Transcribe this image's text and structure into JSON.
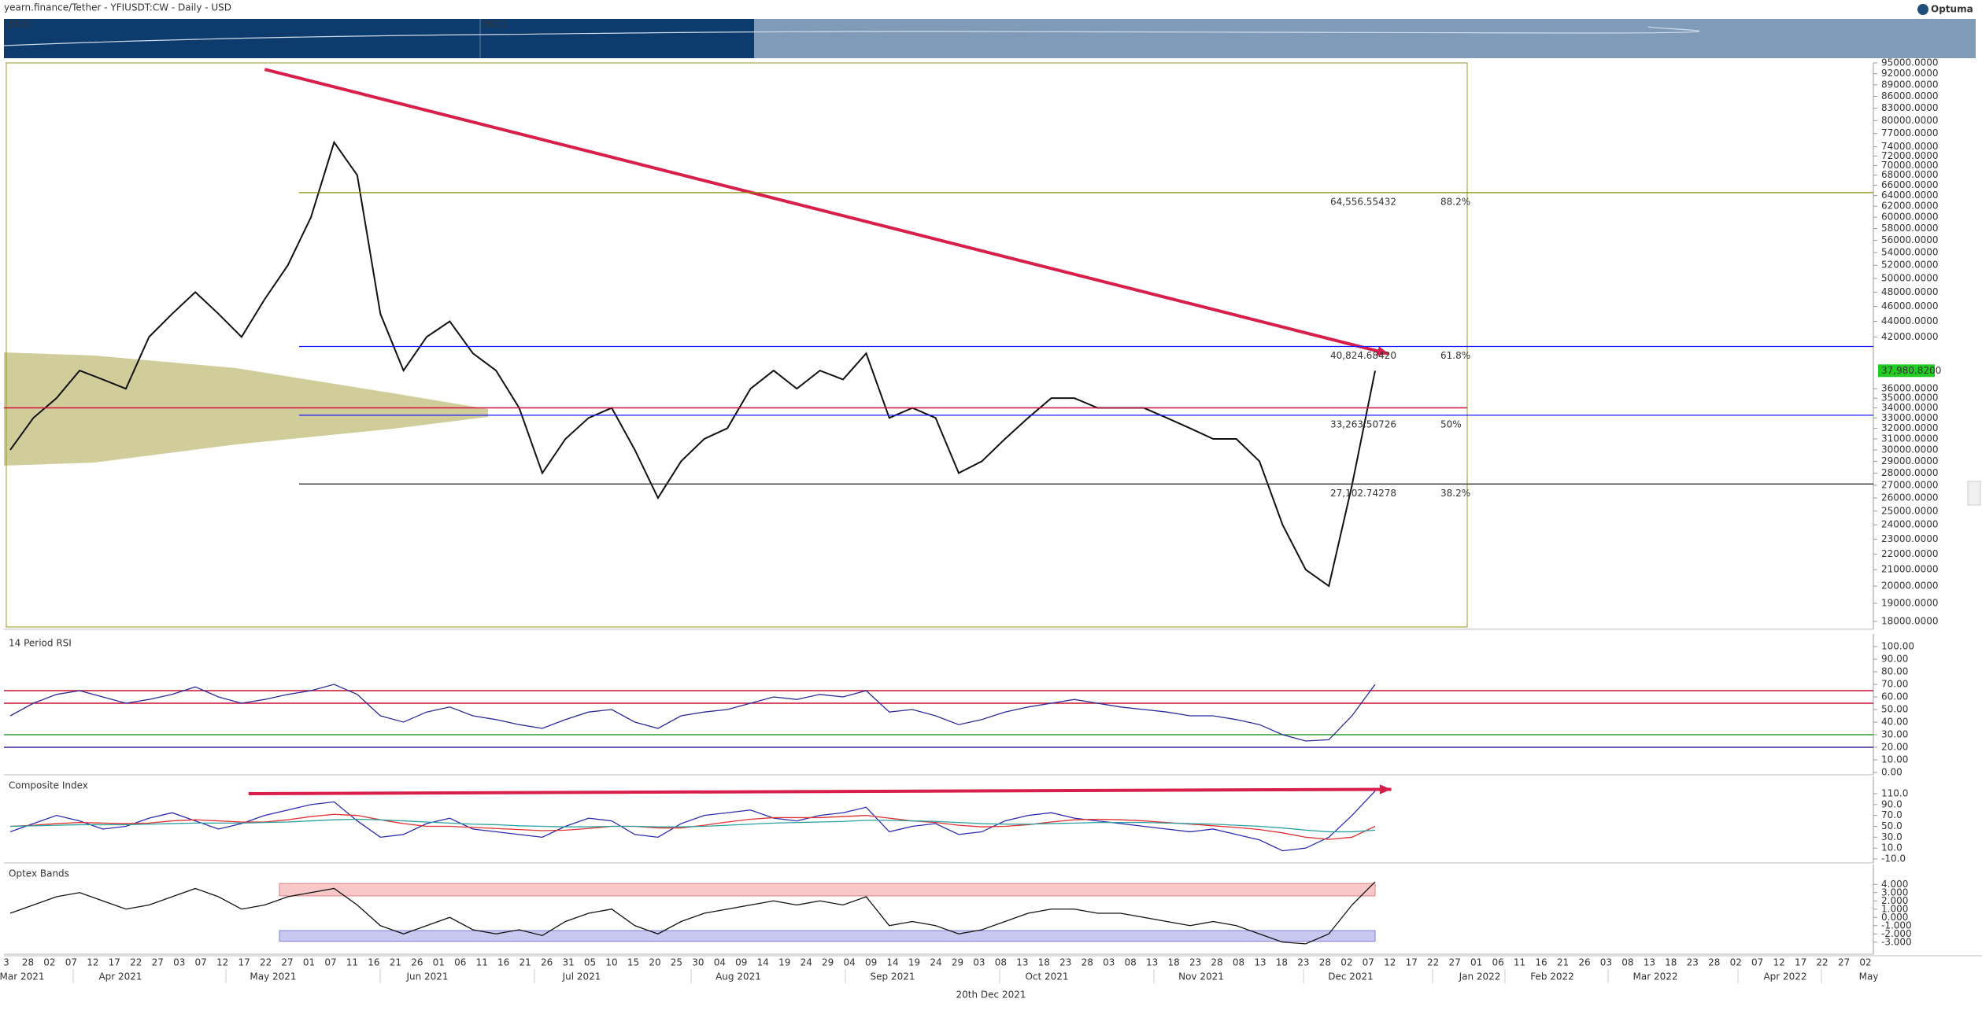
{
  "chart_data": [
    {
      "type": "line",
      "title": "yearn.finance/Tether - YFIUSDT:CW - Daily - USD",
      "log_scale": true,
      "color": "#111111",
      "navigator_labels": [
        "2020",
        "2021"
      ],
      "brand": "Optuma",
      "values": [
        30000,
        33000,
        35000,
        38000,
        37000,
        36000,
        42000,
        45000,
        48000,
        45000,
        42000,
        47000,
        52000,
        60000,
        75000,
        68000,
        45000,
        38000,
        42000,
        44000,
        40000,
        38000,
        34000,
        28000,
        31000,
        33000,
        34000,
        30000,
        26000,
        29000,
        31000,
        32000,
        36000,
        38000,
        36000,
        38000,
        37000,
        40000,
        33000,
        34000,
        33000,
        28000,
        29000,
        31000,
        33000,
        35000,
        35000,
        34000,
        34000,
        34000,
        33000,
        32000,
        31000,
        31000,
        29000,
        24000,
        21000,
        20000,
        27000,
        37980.82
      ],
      "last_price_label": "37,980.8200",
      "ylim": [
        18000,
        95000
      ],
      "yticks": [
        {
          "value": 95000,
          "label": "95000.0000"
        },
        {
          "value": 92000,
          "label": "92000.0000"
        },
        {
          "value": 89000,
          "label": "89000.0000"
        },
        {
          "value": 86000,
          "label": "86000.0000"
        },
        {
          "value": 83000,
          "label": "83000.0000"
        },
        {
          "value": 80000,
          "label": "80000.0000"
        },
        {
          "value": 77000,
          "label": "77000.0000"
        },
        {
          "value": 74000,
          "label": "74000.0000"
        },
        {
          "value": 72000,
          "label": "72000.0000"
        },
        {
          "value": 70000,
          "label": "70000.0000"
        },
        {
          "value": 68000,
          "label": "68000.0000"
        },
        {
          "value": 66000,
          "label": "66000.0000"
        },
        {
          "value": 64000,
          "label": "64000.0000"
        },
        {
          "value": 62000,
          "label": "62000.0000"
        },
        {
          "value": 60000,
          "label": "60000.0000"
        },
        {
          "value": 58000,
          "label": "58000.0000"
        },
        {
          "value": 56000,
          "label": "56000.0000"
        },
        {
          "value": 54000,
          "label": "54000.0000"
        },
        {
          "value": 52000,
          "label": "52000.0000"
        },
        {
          "value": 50000,
          "label": "50000.0000"
        },
        {
          "value": 48000,
          "label": "48000.0000"
        },
        {
          "value": 46000,
          "label": "46000.0000"
        },
        {
          "value": 44000,
          "label": "44000.0000"
        },
        {
          "value": 42000,
          "label": "42000.0000"
        },
        {
          "value": 36000,
          "label": "36000.0000"
        },
        {
          "value": 35000,
          "label": "35000.0000"
        },
        {
          "value": 34000,
          "label": "34000.0000"
        },
        {
          "value": 33000,
          "label": "33000.0000"
        },
        {
          "value": 32000,
          "label": "32000.0000"
        },
        {
          "value": 31000,
          "label": "31000.0000"
        },
        {
          "value": 30000,
          "label": "30000.0000"
        },
        {
          "value": 29000,
          "label": "29000.0000"
        },
        {
          "value": 28000,
          "label": "28000.0000"
        },
        {
          "value": 27000,
          "label": "27000.0000"
        },
        {
          "value": 26000,
          "label": "26000.0000"
        },
        {
          "value": 25000,
          "label": "25000.0000"
        },
        {
          "value": 24000,
          "label": "24000.0000"
        },
        {
          "value": 23000,
          "label": "23000.0000"
        },
        {
          "value": 22000,
          "label": "22000.0000"
        },
        {
          "value": 21000,
          "label": "21000.0000"
        },
        {
          "value": 20000,
          "label": "20000.0000"
        },
        {
          "value": 19000,
          "label": "19000.0000"
        },
        {
          "value": 18000,
          "label": "18000.0000"
        }
      ],
      "fib_levels": [
        {
          "value": 64556.55432,
          "label": "64,556.55432",
          "percent": "88.2%",
          "color": "#8b8b00"
        },
        {
          "value": 40824.6842,
          "label": "40,824.68420",
          "percent": "61.8%",
          "color": "#1a1aff"
        },
        {
          "value": 33263.50726,
          "label": "33,263.50726",
          "percent": "50%",
          "color": "#1a1aff"
        },
        {
          "value": 27102.74278,
          "label": "27,102.74278",
          "percent": "38.2%",
          "color": "#333333"
        }
      ],
      "support_level": 34000,
      "support_color": "#d0103a",
      "trendline": {
        "start": [
          11,
          93200
        ],
        "end": [
          59.6,
          39930
        ],
        "color": "#d81e4a"
      }
    },
    {
      "type": "line",
      "title": "14 Period RSI",
      "color": "#2b2b9a",
      "values": [
        45,
        55,
        62,
        65,
        60,
        55,
        58,
        62,
        68,
        60,
        55,
        58,
        62,
        65,
        70,
        62,
        45,
        40,
        48,
        52,
        45,
        42,
        38,
        35,
        42,
        48,
        50,
        40,
        35,
        45,
        48,
        50,
        55,
        60,
        58,
        62,
        60,
        65,
        48,
        50,
        45,
        38,
        42,
        48,
        52,
        55,
        58,
        55,
        52,
        50,
        48,
        45,
        45,
        42,
        38,
        30,
        25,
        26,
        45,
        70
      ],
      "ylim": [
        0,
        100
      ],
      "yticks": [
        {
          "value": 100,
          "label": "100.00"
        },
        {
          "value": 90,
          "label": "90.00"
        },
        {
          "value": 80,
          "label": "80.00"
        },
        {
          "value": 70,
          "label": "70.00"
        },
        {
          "value": 60,
          "label": "60.00"
        },
        {
          "value": 50,
          "label": "50.00"
        },
        {
          "value": 40,
          "label": "40.00"
        },
        {
          "value": 30,
          "label": "30.00"
        },
        {
          "value": 20,
          "label": "20.00"
        },
        {
          "value": 10,
          "label": "10.00"
        },
        {
          "value": 0,
          "label": "0.00"
        }
      ],
      "levels": [
        {
          "value": 65,
          "color": "#c8102e"
        },
        {
          "value": 55,
          "color": "#c8102e"
        },
        {
          "value": 30,
          "color": "#2e9e2e"
        },
        {
          "value": 20,
          "color": "#3a2a9a"
        }
      ]
    },
    {
      "type": "line",
      "title": "Composite Index",
      "series": [
        {
          "color": "#2b2bb0",
          "values": [
            40,
            55,
            70,
            60,
            45,
            50,
            65,
            75,
            60,
            45,
            55,
            70,
            80,
            90,
            95,
            60,
            30,
            35,
            55,
            65,
            45,
            40,
            35,
            30,
            50,
            65,
            60,
            35,
            30,
            55,
            70,
            75,
            80,
            65,
            60,
            70,
            75,
            85,
            40,
            50,
            55,
            35,
            40,
            60,
            70,
            75,
            65,
            60,
            55,
            50,
            45,
            40,
            45,
            35,
            25,
            5,
            10,
            30,
            70,
            115
          ]
        },
        {
          "color": "#e03030",
          "values": [
            50,
            52,
            55,
            57,
            56,
            55,
            56,
            60,
            62,
            60,
            58,
            58,
            62,
            68,
            72,
            70,
            62,
            55,
            50,
            50,
            48,
            46,
            44,
            42,
            43,
            46,
            50,
            50,
            47,
            47,
            52,
            58,
            63,
            66,
            66,
            66,
            68,
            70,
            65,
            60,
            57,
            52,
            49,
            50,
            53,
            58,
            62,
            63,
            62,
            60,
            57,
            54,
            51,
            48,
            44,
            38,
            30,
            26,
            30,
            50
          ]
        },
        {
          "color": "#2aa0a0",
          "values": [
            50,
            51,
            52,
            53,
            53,
            53,
            54,
            55,
            56,
            56,
            56,
            57,
            58,
            60,
            62,
            63,
            62,
            60,
            58,
            56,
            54,
            53,
            51,
            50,
            49,
            49,
            50,
            50,
            49,
            49,
            50,
            52,
            54,
            56,
            57,
            58,
            59,
            61,
            61,
            60,
            59,
            57,
            55,
            54,
            54,
            55,
            56,
            57,
            57,
            57,
            56,
            55,
            54,
            52,
            50,
            47,
            43,
            40,
            40,
            43
          ]
        }
      ],
      "ylim": [
        -10,
        110
      ],
      "yticks": [
        {
          "value": 110,
          "label": "110.0"
        },
        {
          "value": 90,
          "label": "90.0"
        },
        {
          "value": 70,
          "label": "70.0"
        },
        {
          "value": 50,
          "label": "50.0"
        },
        {
          "value": 30,
          "label": "30.0"
        },
        {
          "value": 10,
          "label": "10.0"
        },
        {
          "value": -10,
          "label": "-10.0"
        }
      ],
      "trendline": {
        "start": [
          10.3,
          110
        ],
        "end": [
          59.7,
          118
        ],
        "color": "#d81e4a"
      }
    },
    {
      "type": "line",
      "title": "Optex Bands",
      "color": "#111111",
      "values": [
        0.5,
        1.5,
        2.5,
        3.0,
        2.0,
        1.0,
        1.5,
        2.5,
        3.5,
        2.5,
        1.0,
        1.5,
        2.5,
        3.0,
        3.5,
        1.5,
        -1.0,
        -2.0,
        -1.0,
        0,
        -1.5,
        -2.0,
        -1.5,
        -2.2,
        -0.5,
        0.5,
        1.0,
        -1.0,
        -2.0,
        -0.5,
        0.5,
        1.0,
        1.5,
        2.0,
        1.5,
        2.0,
        1.5,
        2.5,
        -1.0,
        -0.5,
        -1.0,
        -2.0,
        -1.5,
        -0.5,
        0.5,
        1.0,
        1.0,
        0.5,
        0.5,
        0,
        -0.5,
        -1.0,
        -0.5,
        -1.0,
        -2.0,
        -3.0,
        -3.2,
        -2.0,
        1.5,
        4.3
      ],
      "bands": [
        {
          "range": [
            2.6,
            4.1
          ],
          "color": "#f8c8c8"
        },
        {
          "range": [
            -2.9,
            -1.6
          ],
          "color": "#c8c8f0"
        }
      ],
      "ylim": [
        -3.5,
        4.5
      ],
      "yticks": [
        {
          "value": 4,
          "label": "4.000"
        },
        {
          "value": 3,
          "label": "3.000"
        },
        {
          "value": 2,
          "label": "2.000"
        },
        {
          "value": 1,
          "label": "1.000"
        },
        {
          "value": 0,
          "label": "0.000"
        },
        {
          "value": -1,
          "label": "-1.000"
        },
        {
          "value": -2,
          "label": "-2.000"
        },
        {
          "value": -3,
          "label": "-3.000"
        }
      ],
      "x_day_labels": [
        "3",
        "28",
        "02",
        "07",
        "12",
        "17",
        "22",
        "27",
        "03",
        "07",
        "12",
        "17",
        "22",
        "27",
        "01",
        "07",
        "11",
        "16",
        "21",
        "26",
        "01",
        "06",
        "11",
        "16",
        "21",
        "26",
        "31",
        "05",
        "10",
        "15",
        "20",
        "25",
        "30",
        "04",
        "09",
        "14",
        "19",
        "24",
        "29",
        "04",
        "09",
        "14",
        "19",
        "24",
        "29",
        "03",
        "08",
        "13",
        "18",
        "23",
        "28",
        "03",
        "08",
        "13",
        "18",
        "23",
        "28",
        "08",
        "13",
        "18",
        "23",
        "28",
        "02",
        "07",
        "12",
        "17",
        "22",
        "27",
        "01",
        "06",
        "11",
        "16",
        "21",
        "26",
        "03",
        "08",
        "13",
        "18",
        "23",
        "28",
        "02",
        "07",
        "12",
        "17",
        "22",
        "27",
        "02"
      ],
      "x_month_labels": [
        "Mar 2021",
        "Apr 2021",
        "May 2021",
        "Jun 2021",
        "Jul 2021",
        "Aug 2021",
        "Sep 2021",
        "Oct 2021",
        "Nov 2021",
        "Dec 2021",
        "Jan 2022",
        "Feb 2022",
        "Mar 2022",
        "Apr 2022",
        "May"
      ],
      "footer": "20th Dec 2021"
    }
  ]
}
